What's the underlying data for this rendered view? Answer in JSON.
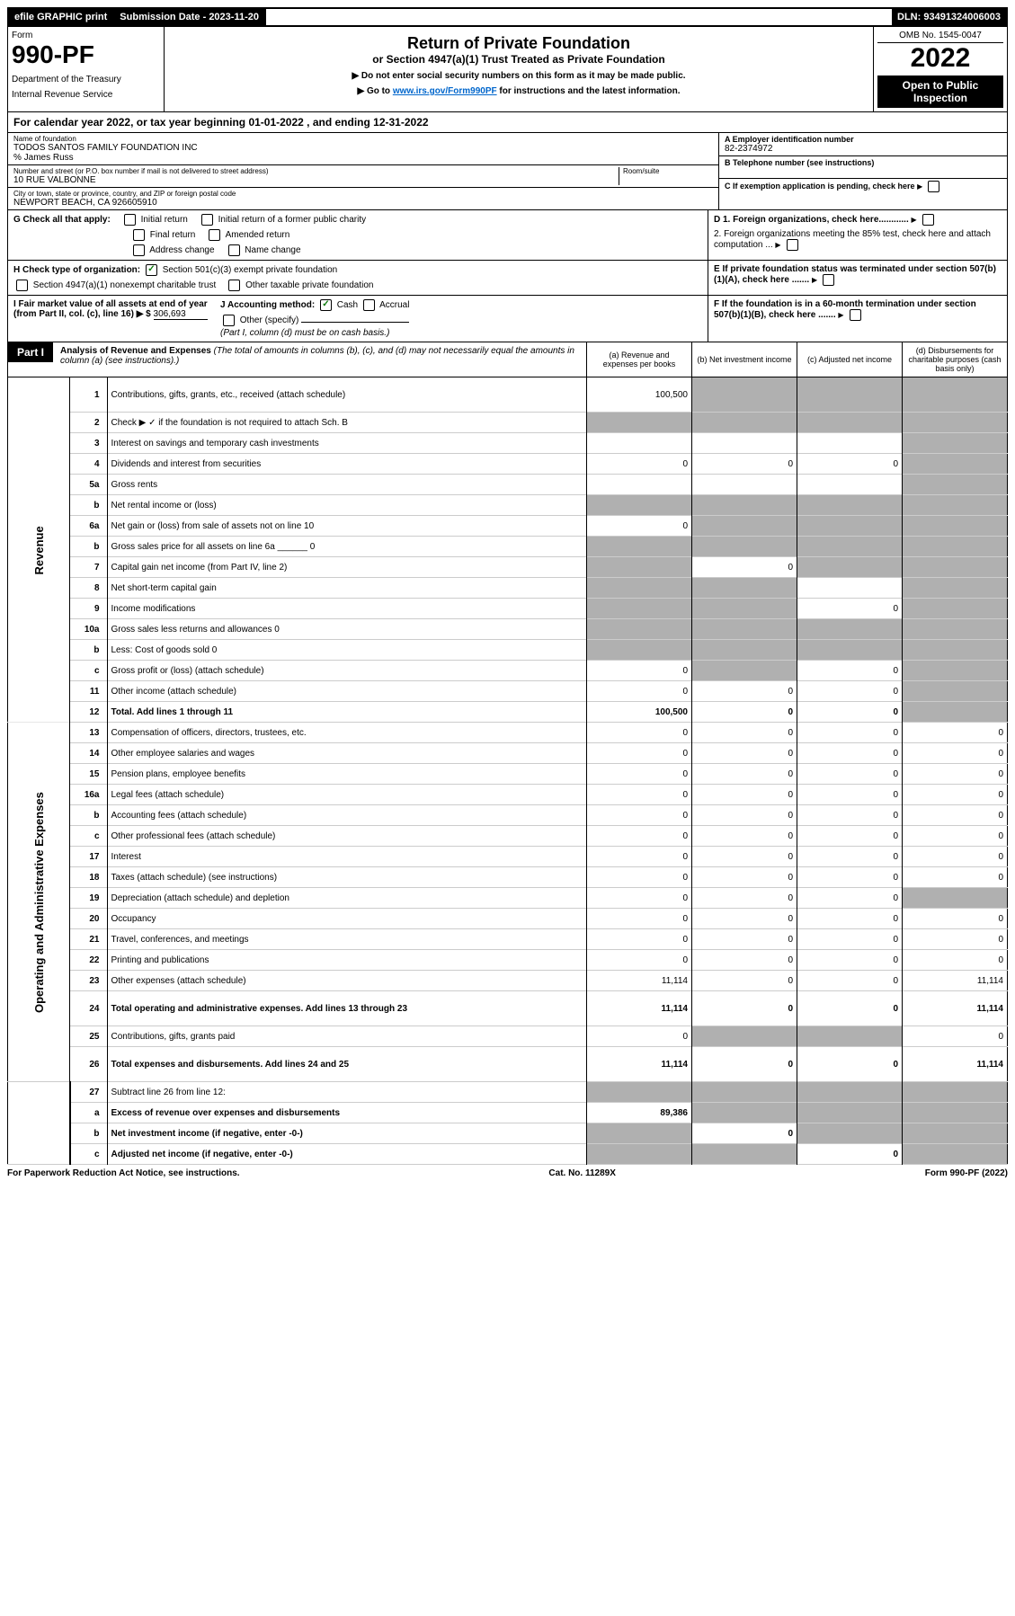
{
  "topbar": {
    "efile": "efile GRAPHIC print",
    "submission_label": "Submission Date - 2023-11-20",
    "dln": "DLN: 93491324006003"
  },
  "header": {
    "form_word": "Form",
    "form_no": "990-PF",
    "dept": "Department of the Treasury",
    "irs": "Internal Revenue Service",
    "title": "Return of Private Foundation",
    "subtitle": "or Section 4947(a)(1) Trust Treated as Private Foundation",
    "instr1": "▶ Do not enter social security numbers on this form as it may be made public.",
    "instr2_pre": "▶ Go to ",
    "instr2_link": "www.irs.gov/Form990PF",
    "instr2_post": " for instructions and the latest information.",
    "omb": "OMB No. 1545-0047",
    "year": "2022",
    "open": "Open to Public Inspection"
  },
  "calyear": "For calendar year 2022, or tax year beginning 01-01-2022                          , and ending 12-31-2022",
  "info": {
    "name_lbl": "Name of foundation",
    "name_val": "TODOS SANTOS FAMILY FOUNDATION INC",
    "care_of": "% James Russ",
    "street_lbl": "Number and street (or P.O. box number if mail is not delivered to street address)",
    "street_val": "10 RUE VALBONNE",
    "room_lbl": "Room/suite",
    "city_lbl": "City or town, state or province, country, and ZIP or foreign postal code",
    "city_val": "NEWPORT BEACH, CA 926605910",
    "ein_lbl": "A Employer identification number",
    "ein_val": "82-2374972",
    "tel_lbl": "B Telephone number (see instructions)",
    "pending": "C If exemption application is pending, check here",
    "d1": "D 1. Foreign organizations, check here............",
    "d2": "2. Foreign organizations meeting the 85% test, check here and attach computation ...",
    "e": "E If private foundation status was terminated under section 507(b)(1)(A), check here .......",
    "f": "F If the foundation is in a 60-month termination under section 507(b)(1)(B), check here .......",
    "g_label": "G Check all that apply:",
    "g_initial": "Initial return",
    "g_initial_former": "Initial return of a former public charity",
    "g_final": "Final return",
    "g_amended": "Amended return",
    "g_address": "Address change",
    "g_name": "Name change",
    "h_label": "H Check type of organization:",
    "h_501c3": "Section 501(c)(3) exempt private foundation",
    "h_4947": "Section 4947(a)(1) nonexempt charitable trust",
    "h_other": "Other taxable private foundation",
    "i_label": "I Fair market value of all assets at end of year (from Part II, col. (c), line 16) ▶ $",
    "i_val": "306,693",
    "j_label": "J Accounting method:",
    "j_cash": "Cash",
    "j_accrual": "Accrual",
    "j_other": "Other (specify)",
    "j_note": "(Part I, column (d) must be on cash basis.)"
  },
  "part1": {
    "label": "Part I",
    "title": "Analysis of Revenue and Expenses",
    "note": "(The total of amounts in columns (b), (c), and (d) may not necessarily equal the amounts in column (a) (see instructions).)",
    "col_a": "(a) Revenue and expenses per books",
    "col_b": "(b) Net investment income",
    "col_c": "(c) Adjusted net income",
    "col_d": "(d) Disbursements for charitable purposes (cash basis only)"
  },
  "sections": {
    "revenue": "Revenue",
    "expenses": "Operating and Administrative Expenses"
  },
  "rows": [
    {
      "n": "1",
      "d": "shade",
      "a": "100,500",
      "b": "shade",
      "c": "shade"
    },
    {
      "n": "2",
      "d": "shade",
      "a": "shade",
      "b": "shade",
      "c": "shade",
      "bold": true
    },
    {
      "n": "3",
      "d": "shade",
      "a": "",
      "b": "",
      "c": ""
    },
    {
      "n": "4",
      "d": "shade",
      "a": "0",
      "b": "0",
      "c": "0"
    },
    {
      "n": "5a",
      "d": "shade",
      "a": "",
      "b": "",
      "c": ""
    },
    {
      "n": "b",
      "d": "shade",
      "a": "shade",
      "b": "shade",
      "c": "shade"
    },
    {
      "n": "6a",
      "d": "shade",
      "a": "0",
      "b": "shade",
      "c": "shade"
    },
    {
      "n": "b",
      "d": "shade",
      "a": "shade",
      "b": "shade",
      "c": "shade"
    },
    {
      "n": "7",
      "d": "shade",
      "a": "shade",
      "b": "0",
      "c": "shade"
    },
    {
      "n": "8",
      "d": "shade",
      "a": "shade",
      "b": "shade",
      "c": ""
    },
    {
      "n": "9",
      "d": "shade",
      "a": "shade",
      "b": "shade",
      "c": "0"
    },
    {
      "n": "10a",
      "d": "shade",
      "a": "shade",
      "b": "shade",
      "c": "shade"
    },
    {
      "n": "b",
      "d": "shade",
      "a": "shade",
      "b": "shade",
      "c": "shade"
    },
    {
      "n": "c",
      "d": "shade",
      "a": "0",
      "b": "shade",
      "c": "0"
    },
    {
      "n": "11",
      "d": "shade",
      "a": "0",
      "b": "0",
      "c": "0"
    },
    {
      "n": "12",
      "d": "shade",
      "a": "100,500",
      "b": "0",
      "c": "0",
      "bold": true
    }
  ],
  "exp_rows": [
    {
      "n": "13",
      "d": "0",
      "a": "0",
      "b": "0",
      "c": "0"
    },
    {
      "n": "14",
      "d": "0",
      "a": "0",
      "b": "0",
      "c": "0"
    },
    {
      "n": "15",
      "d": "0",
      "a": "0",
      "b": "0",
      "c": "0"
    },
    {
      "n": "16a",
      "d": "0",
      "a": "0",
      "b": "0",
      "c": "0"
    },
    {
      "n": "b",
      "d": "0",
      "a": "0",
      "b": "0",
      "c": "0"
    },
    {
      "n": "c",
      "d": "0",
      "a": "0",
      "b": "0",
      "c": "0"
    },
    {
      "n": "17",
      "d": "0",
      "a": "0",
      "b": "0",
      "c": "0"
    },
    {
      "n": "18",
      "d": "0",
      "a": "0",
      "b": "0",
      "c": "0"
    },
    {
      "n": "19",
      "d": "shade",
      "a": "0",
      "b": "0",
      "c": "0"
    },
    {
      "n": "20",
      "d": "0",
      "a": "0",
      "b": "0",
      "c": "0"
    },
    {
      "n": "21",
      "d": "0",
      "a": "0",
      "b": "0",
      "c": "0"
    },
    {
      "n": "22",
      "d": "0",
      "a": "0",
      "b": "0",
      "c": "0"
    },
    {
      "n": "23",
      "d": "11,114",
      "a": "11,114",
      "b": "0",
      "c": "0",
      "icon": true
    },
    {
      "n": "24",
      "d": "11,114",
      "a": "11,114",
      "b": "0",
      "c": "0",
      "bold": true,
      "tall": true
    },
    {
      "n": "25",
      "d": "0",
      "a": "0",
      "b": "shade",
      "c": "shade"
    },
    {
      "n": "26",
      "d": "11,114",
      "a": "11,114",
      "b": "0",
      "c": "0",
      "bold": true,
      "tall": true
    }
  ],
  "net_rows": [
    {
      "n": "27",
      "d": "shade",
      "a": "shade",
      "b": "shade",
      "c": "shade"
    },
    {
      "n": "a",
      "d": "shade",
      "a": "89,386",
      "b": "shade",
      "c": "shade",
      "bold": true
    },
    {
      "n": "b",
      "d": "shade",
      "a": "shade",
      "b": "0",
      "c": "shade",
      "bold": true
    },
    {
      "n": "c",
      "d": "shade",
      "a": "shade",
      "b": "shade",
      "c": "0",
      "bold": true
    }
  ],
  "footer": {
    "left": "For Paperwork Reduction Act Notice, see instructions.",
    "center": "Cat. No. 11289X",
    "right": "Form 990-PF (2022)"
  }
}
